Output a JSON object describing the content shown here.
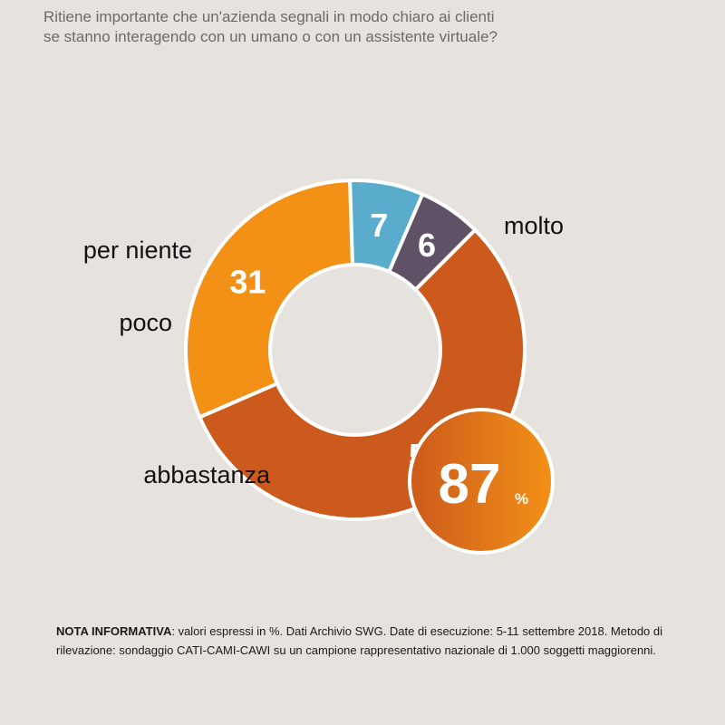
{
  "question": {
    "line1": "Ritiene importante che un'azienda segnali in modo chiaro ai clienti",
    "line2": "se stanno interagendo con un umano o con un assistente virtuale?"
  },
  "chart_data": {
    "type": "pie",
    "variant": "donut",
    "slices": [
      {
        "label": "molto",
        "value": 56,
        "color": "#cc5a1c"
      },
      {
        "label": "abbastanza",
        "value": 31,
        "color": "#f29116"
      },
      {
        "label": "poco",
        "value": 7,
        "color": "#5aaccc"
      },
      {
        "label": "per niente",
        "value": 6,
        "color": "#5f5266"
      }
    ],
    "highlight": {
      "value": "87",
      "unit": "%",
      "color_from": "#cc5a1c",
      "color_to": "#f29116"
    }
  },
  "note": {
    "label": "NOTA INFORMATIVA",
    "text": ": valori espressi in %. Dati Archivio SWG. Date di esecuzione: 5-11 settembre 2018. Metodo di rilevazione: sondaggio CATI-CAMI-CAWI su un campione rappresentativo nazionale di 1.000 soggetti maggiorenni."
  }
}
